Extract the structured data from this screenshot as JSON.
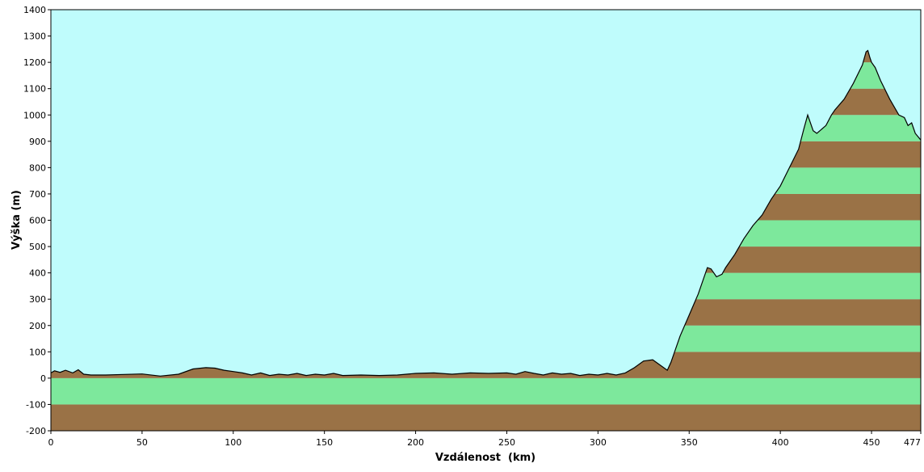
{
  "chart_data": {
    "type": "area",
    "title": "",
    "xlabel": "Vzdálenost  (km)",
    "ylabel": "Výška (m)",
    "xlim": [
      0,
      477
    ],
    "ylim": [
      -200,
      1400
    ],
    "x_ticks": [
      0,
      50,
      100,
      150,
      200,
      250,
      300,
      350,
      400,
      450
    ],
    "x_tick_labels": [
      "0",
      "50",
      "100",
      "150",
      "200",
      "250",
      "300",
      "350",
      "400",
      "450"
    ],
    "x_end_label": "477",
    "y_ticks": [
      -200,
      -100,
      0,
      100,
      200,
      300,
      400,
      500,
      600,
      700,
      800,
      900,
      1000,
      1100,
      1200,
      1300,
      1400
    ],
    "y_tick_labels": [
      "-200",
      "-100",
      "0",
      "100",
      "200",
      "300",
      "400",
      "500",
      "600",
      "700",
      "800",
      "900",
      "1000",
      "1100",
      "1200",
      "1300",
      "1400"
    ],
    "band_height": 100,
    "grid": false,
    "colors": {
      "sky": "#bffcfc",
      "band_green": "#7de89c",
      "band_brown": "#9a7246",
      "profile_line": "#000000"
    },
    "series": [
      {
        "x": [
          0,
          2,
          5,
          8,
          12,
          15,
          18,
          22,
          30,
          40,
          50,
          60,
          70,
          78,
          85,
          90,
          95,
          100,
          105,
          110,
          115,
          120,
          125,
          130,
          135,
          140,
          145,
          150,
          155,
          160,
          170,
          180,
          190,
          200,
          210,
          220,
          230,
          240,
          250,
          255,
          260,
          265,
          270,
          275,
          280,
          285,
          290,
          295,
          300,
          305,
          310,
          315,
          320,
          325,
          330,
          335,
          338,
          340,
          345,
          350,
          355,
          360,
          362,
          365,
          368,
          370,
          375,
          380,
          385,
          390,
          395,
          400,
          405,
          410,
          413,
          415,
          418,
          420,
          425,
          428,
          430,
          435,
          440,
          445,
          447,
          448,
          449,
          450,
          452,
          455,
          460,
          465,
          468,
          470,
          472,
          474,
          477
        ],
        "y": [
          20,
          28,
          22,
          30,
          20,
          32,
          15,
          12,
          12,
          14,
          16,
          8,
          15,
          35,
          40,
          38,
          30,
          25,
          20,
          12,
          20,
          10,
          15,
          12,
          18,
          10,
          15,
          12,
          18,
          10,
          12,
          10,
          12,
          18,
          20,
          15,
          20,
          18,
          20,
          15,
          25,
          18,
          12,
          20,
          15,
          18,
          10,
          15,
          12,
          18,
          12,
          20,
          40,
          65,
          70,
          45,
          30,
          60,
          160,
          240,
          320,
          420,
          415,
          385,
          395,
          420,
          470,
          530,
          580,
          620,
          680,
          730,
          800,
          870,
          950,
          1000,
          940,
          930,
          960,
          1000,
          1020,
          1060,
          1120,
          1190,
          1240,
          1245,
          1220,
          1200,
          1180,
          1130,
          1060,
          1000,
          990,
          960,
          970,
          930,
          905
        ]
      }
    ]
  }
}
